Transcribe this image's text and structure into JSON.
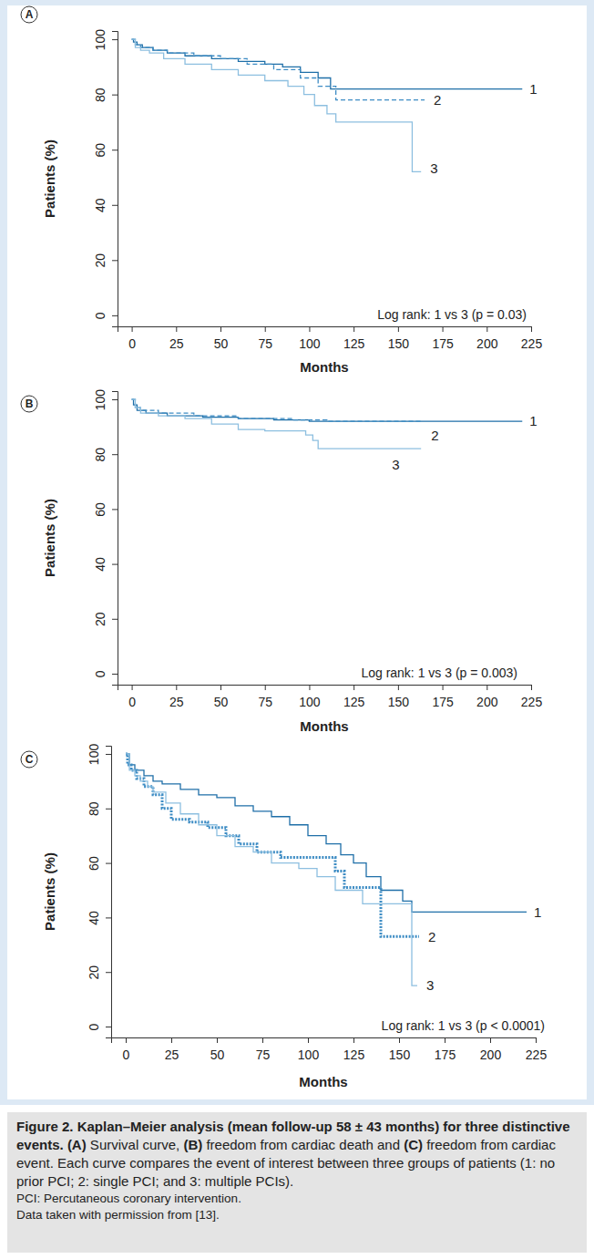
{
  "chart_data": [
    {
      "type": "step",
      "panel_label": "A",
      "x_label": "Months",
      "y_label": "Patients (%)",
      "annotation": "Log rank: 1 vs 3 (p = 0.03)",
      "xlim": [
        -8,
        225
      ],
      "ylim": [
        -4,
        103
      ],
      "xticks": [
        0,
        25,
        50,
        75,
        100,
        125,
        150,
        175,
        200,
        225
      ],
      "yticks": [
        0,
        20,
        40,
        60,
        80,
        100
      ],
      "series": [
        {
          "name": "1",
          "color": "#1f6fa8",
          "line_style": "solid",
          "x": [
            0,
            1,
            3,
            6,
            12,
            20,
            30,
            45,
            60,
            75,
            85,
            95,
            105,
            112,
            220
          ],
          "values": [
            100,
            99,
            98,
            97,
            96,
            95,
            94,
            93,
            92,
            91,
            90,
            88,
            86,
            82,
            82
          ]
        },
        {
          "name": "2",
          "color": "#3d8cc4",
          "line_style": "dashed",
          "x": [
            0,
            2,
            5,
            12,
            20,
            35,
            50,
            65,
            80,
            95,
            105,
            115,
            165
          ],
          "values": [
            100,
            98,
            97,
            96,
            95,
            94,
            93,
            91,
            89,
            86,
            83,
            78,
            78
          ]
        },
        {
          "name": "3",
          "color": "#8dbfe0",
          "line_style": "solid",
          "x": [
            0,
            2,
            5,
            10,
            18,
            30,
            45,
            60,
            75,
            88,
            97,
            103,
            110,
            115,
            158,
            163
          ],
          "values": [
            100,
            97,
            96,
            95,
            93,
            91,
            89,
            87,
            85,
            83,
            80,
            76,
            73,
            70,
            52,
            52
          ]
        }
      ]
    },
    {
      "type": "step",
      "panel_label": "B",
      "x_label": "Months",
      "y_label": "Patients (%)",
      "annotation": "Log rank: 1 vs 3 (p = 0.003)",
      "xlim": [
        -8,
        225
      ],
      "ylim": [
        -4,
        103
      ],
      "xticks": [
        0,
        25,
        50,
        75,
        100,
        125,
        150,
        175,
        200,
        225
      ],
      "yticks": [
        0,
        20,
        40,
        60,
        80,
        100
      ],
      "series": [
        {
          "name": "1",
          "color": "#1f6fa8",
          "line_style": "solid",
          "x": [
            0,
            1,
            3,
            8,
            20,
            40,
            60,
            80,
            100,
            220
          ],
          "values": [
            100,
            98,
            96,
            95,
            94,
            93.5,
            93,
            92.5,
            92,
            92
          ]
        },
        {
          "name": "2",
          "color": "#3d8cc4",
          "line_style": "dashed",
          "x": [
            0,
            2,
            5,
            15,
            35,
            60,
            90,
            110,
            163
          ],
          "values": [
            100,
            97,
            96,
            95,
            94,
            93,
            92.5,
            92,
            92
          ]
        },
        {
          "name": "3",
          "color": "#8dbfe0",
          "line_style": "solid",
          "x": [
            0,
            2,
            5,
            15,
            30,
            45,
            60,
            75,
            98,
            102,
            105,
            163
          ],
          "values": [
            100,
            97,
            95,
            94,
            93,
            91,
            89,
            88.5,
            87,
            85,
            82,
            82
          ]
        }
      ]
    },
    {
      "type": "step",
      "panel_label": "C",
      "x_label": "Months",
      "y_label": "Patients (%)",
      "annotation": "Log rank: 1 vs 3 (p < 0.0001)",
      "xlim": [
        -8,
        225
      ],
      "ylim": [
        -4,
        103
      ],
      "xticks": [
        0,
        25,
        50,
        75,
        100,
        125,
        150,
        175,
        200,
        225
      ],
      "yticks": [
        0,
        20,
        40,
        60,
        80,
        100
      ],
      "series": [
        {
          "name": "1",
          "color": "#1f6fa8",
          "line_style": "solid",
          "x": [
            0,
            2,
            5,
            10,
            15,
            20,
            30,
            40,
            50,
            60,
            70,
            80,
            90,
            100,
            110,
            118,
            125,
            132,
            140,
            152,
            157,
            220
          ],
          "values": [
            100,
            96,
            94,
            92,
            90,
            89,
            87,
            85,
            84,
            81,
            79,
            77,
            74,
            70,
            67,
            63,
            60,
            55,
            50,
            46,
            42,
            42
          ]
        },
        {
          "name": "2",
          "color": "#3d8cc4",
          "line_style": "dotted",
          "x": [
            0,
            1,
            3,
            6,
            10,
            15,
            20,
            25,
            35,
            45,
            55,
            62,
            72,
            85,
            115,
            120,
            140,
            161
          ],
          "values": [
            100,
            96,
            94,
            91,
            88,
            85,
            80,
            76,
            75,
            73,
            70,
            67,
            64,
            62,
            57,
            51,
            33,
            33
          ]
        },
        {
          "name": "3",
          "color": "#8dbfe0",
          "line_style": "solid",
          "x": [
            0,
            2,
            5,
            8,
            12,
            15,
            22,
            30,
            40,
            50,
            60,
            70,
            80,
            95,
            105,
            115,
            130,
            157,
            160
          ],
          "values": [
            100,
            94,
            92,
            90,
            88,
            86,
            82,
            78,
            74,
            70,
            66,
            64,
            60,
            58,
            55,
            50,
            45,
            15,
            15
          ]
        }
      ]
    }
  ],
  "caption": {
    "title": "Figure 2. Kaplan–Meier analysis (mean follow-up 58 ± 43 months) for three distinctive events.",
    "text": "(A) Survival curve, (B) freedom from cardiac death and (C) freedom from cardiac event. Each curve compares the event of interest between three groups of patients (1: no prior PCI; 2: single PCI; and 3: multiple PCIs).",
    "abbreviation": "PCI: Percutaneous coronary intervention.",
    "source": "Data taken with permission from [13]."
  }
}
